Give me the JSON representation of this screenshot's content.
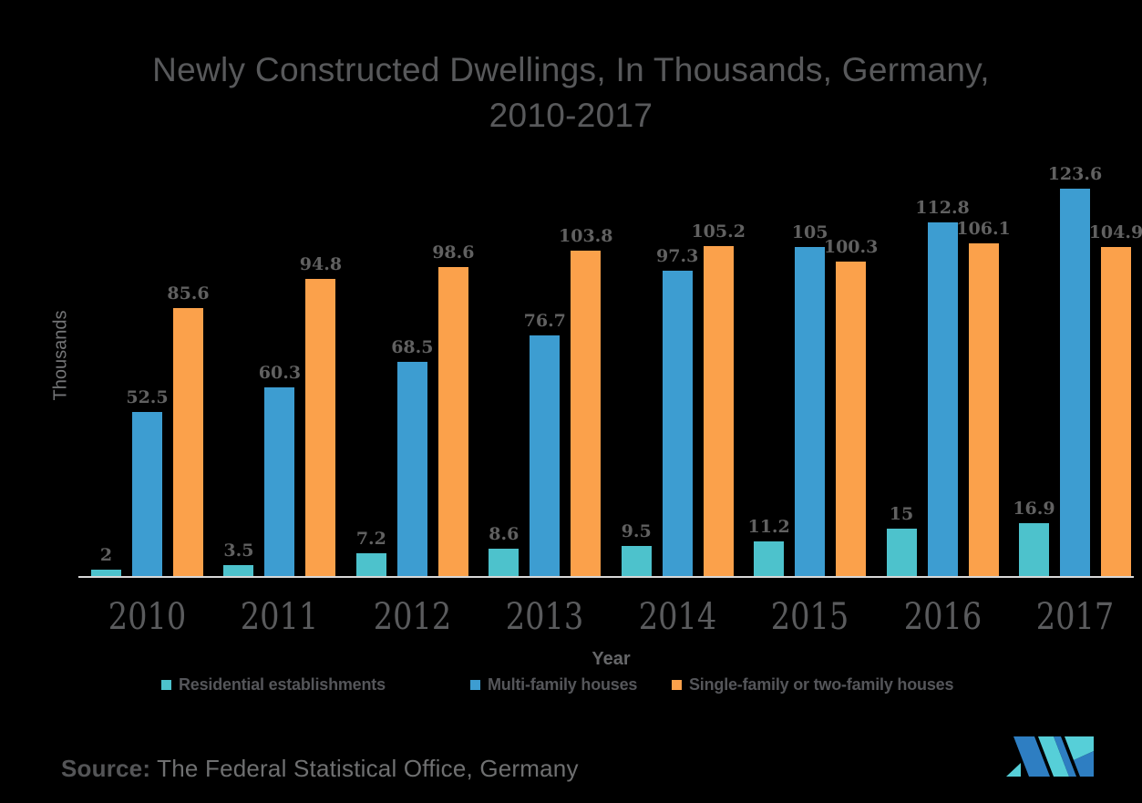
{
  "title": {
    "line1": "Newly Constructed Dwellings, In Thousands, Germany,",
    "line2": "2010-2017"
  },
  "chart_data": {
    "type": "bar",
    "title": "Newly Constructed Dwellings, In Thousands, Germany, 2010-2017",
    "categories": [
      "2010",
      "2011",
      "2012",
      "2013",
      "2014",
      "2015",
      "2016",
      "2017"
    ],
    "series": [
      {
        "name": "Residential establishments",
        "color": "#4dc2cc",
        "values": [
          2,
          3.5,
          7.2,
          8.6,
          9.5,
          11.2,
          15,
          16.9
        ]
      },
      {
        "name": "Multi-family houses",
        "color": "#3d9dd1",
        "values": [
          52.5,
          60.3,
          68.5,
          76.7,
          97.3,
          105,
          112.8,
          123.6
        ]
      },
      {
        "name": "Single-family or two-family houses",
        "color": "#fba14b",
        "values": [
          85.6,
          94.8,
          98.6,
          103.8,
          105.2,
          100.3,
          106.1,
          104.9
        ]
      }
    ],
    "xlabel": "Year",
    "ylabel": "Thousands",
    "ylim": [
      0,
      123.6
    ],
    "grid": false,
    "legend_position": "bottom",
    "value_labels_shown": true
  },
  "source": {
    "label": "Source:",
    "text": "The Federal Statistical Office, Germany"
  },
  "logo": {
    "name": "mordor-intelligence-logo",
    "blue": "#2e7ec2",
    "teal": "#56cfd8"
  },
  "colors": {
    "background": "#000000",
    "title_text": "#58595b",
    "value_label": "#616161",
    "year_label": "#5a5b5d",
    "axis_line": "#d8d8d8",
    "legend_text": "#55565a",
    "axis_title": "#666769",
    "ylabel_text": "#747577",
    "source_label": "#545557",
    "source_text": "#6f7071"
  }
}
